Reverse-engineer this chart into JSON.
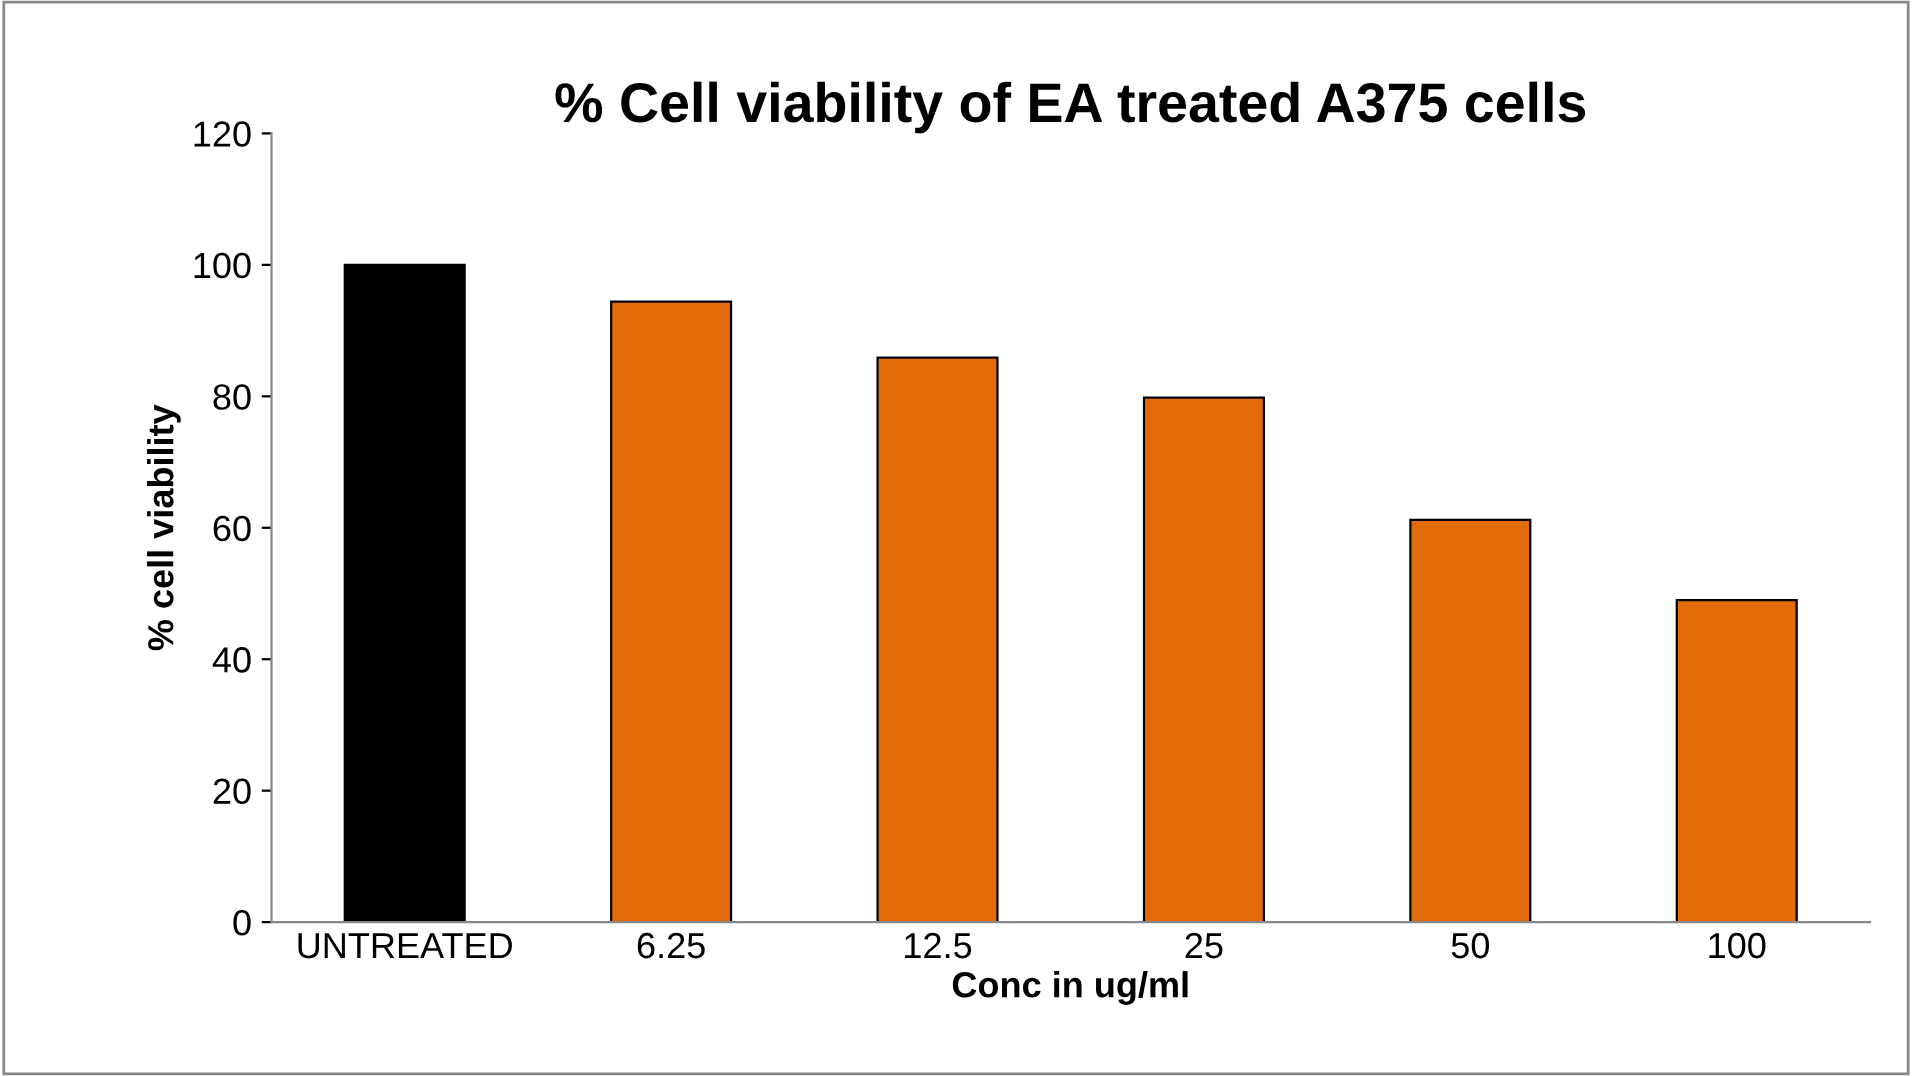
{
  "chart_data": {
    "type": "bar",
    "title": "% Cell viability of EA treated A375 cells",
    "xlabel": "Conc in ug/ml",
    "ylabel": "% cell viability",
    "categories": [
      "UNTREATED",
      "6.25",
      "12.5",
      "25",
      "50",
      "100"
    ],
    "values": [
      100,
      94.4,
      85.9,
      79.8,
      61.2,
      49.0
    ],
    "colors": [
      "#000000",
      "#e36c0a",
      "#e36c0a",
      "#e36c0a",
      "#e36c0a",
      "#e36c0a"
    ],
    "ylim": [
      0,
      120
    ],
    "yticks": [
      0,
      20,
      40,
      60,
      80,
      100,
      120
    ],
    "grid": false
  }
}
